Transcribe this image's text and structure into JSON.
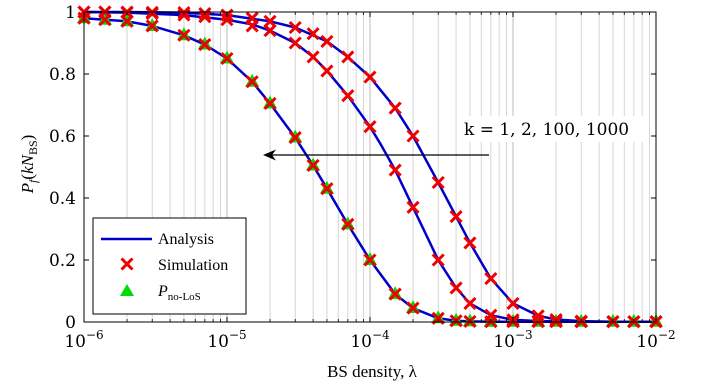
{
  "chart_data": {
    "type": "line",
    "xscale": "log",
    "xlim": [
      1e-06,
      0.01
    ],
    "ylim": [
      0,
      1
    ],
    "grid": "x-major-and-minor",
    "xlabel": "BS density, λ",
    "ylabel": "P_f(kN_BS)",
    "xtick_labels": [
      {
        "base": "10",
        "exp": "−6"
      },
      {
        "base": "10",
        "exp": "−5"
      },
      {
        "base": "10",
        "exp": "−4"
      },
      {
        "base": "10",
        "exp": "−3"
      },
      {
        "base": "10",
        "exp": "−2"
      }
    ],
    "ytick_labels": [
      "0",
      "0.2",
      "0.4",
      "0.6",
      "0.8",
      "1"
    ],
    "annotation": "k = 1, 2, 100, 1000",
    "legend": {
      "placement": "bottom-left",
      "entries": [
        {
          "label": "Analysis",
          "style": "line",
          "color": "#0000cc"
        },
        {
          "label": "Simulation",
          "style": "x-marker",
          "color": "#ee0000"
        },
        {
          "label_main": "P",
          "label_sub": "no-LoS",
          "style": "triangle-marker",
          "color": "#00dd00"
        }
      ]
    },
    "series": [
      {
        "name": "Analysis",
        "role": "k=1",
        "style": "line",
        "color": "#0000cc",
        "x": [
          1e-06,
          1.4e-06,
          2e-06,
          3e-06,
          5e-06,
          7e-06,
          1e-05,
          1.5e-05,
          2e-05,
          3e-05,
          4e-05,
          5e-05,
          7e-05,
          0.0001,
          0.00015,
          0.0002,
          0.0003,
          0.0004,
          0.0005,
          0.0007,
          0.001,
          0.0015,
          0.002,
          0.003,
          0.005,
          0.01
        ],
        "y": [
          0.98,
          0.975,
          0.97,
          0.955,
          0.925,
          0.895,
          0.85,
          0.775,
          0.705,
          0.595,
          0.505,
          0.43,
          0.315,
          0.2,
          0.09,
          0.045,
          0.012,
          0.004,
          0.002,
          0.001,
          0.001,
          0.001,
          0.001,
          0.001,
          0.001,
          0.001
        ]
      },
      {
        "name": "Analysis",
        "role": "k=100",
        "style": "line",
        "color": "#0000cc",
        "x": [
          1e-06,
          2e-06,
          5e-06,
          1e-05,
          1.5e-05,
          2e-05,
          3e-05,
          4e-05,
          5e-05,
          7e-05,
          0.0001,
          0.00012,
          0.00015,
          0.0002,
          0.0003,
          0.0004,
          0.0005,
          0.0007,
          0.001,
          0.0015,
          0.002,
          0.003,
          0.005,
          0.01
        ],
        "y": [
          1.0,
          0.998,
          0.99,
          0.975,
          0.96,
          0.94,
          0.9,
          0.855,
          0.81,
          0.73,
          0.63,
          0.57,
          0.49,
          0.37,
          0.2,
          0.11,
          0.06,
          0.022,
          0.007,
          0.003,
          0.002,
          0.001,
          0.001,
          0.001
        ]
      },
      {
        "name": "Analysis",
        "role": "k=1000",
        "style": "line",
        "color": "#0000cc",
        "x": [
          1e-06,
          2e-06,
          5e-06,
          1e-05,
          2e-05,
          3e-05,
          5e-05,
          7e-05,
          0.0001,
          0.00015,
          0.0002,
          0.0003,
          0.0004,
          0.0005,
          0.0007,
          0.001,
          0.0015,
          0.002,
          0.003,
          0.005,
          0.01
        ],
        "y": [
          1.0,
          1.0,
          0.998,
          0.99,
          0.97,
          0.95,
          0.905,
          0.855,
          0.79,
          0.69,
          0.6,
          0.45,
          0.34,
          0.255,
          0.14,
          0.06,
          0.02,
          0.008,
          0.003,
          0.001,
          0.001
        ]
      },
      {
        "name": "Simulation",
        "role": "k=1",
        "style": "x-marker",
        "color": "#ee0000",
        "x": [
          1e-06,
          1.4e-06,
          2e-06,
          3e-06,
          5e-06,
          7e-06,
          1e-05,
          1.5e-05,
          2e-05,
          3e-05,
          4e-05,
          5e-05,
          7e-05,
          0.0001,
          0.00015,
          0.0002,
          0.0003,
          0.0004,
          0.0005,
          0.0007,
          0.001,
          0.0015,
          0.002,
          0.003,
          0.005,
          0.01
        ],
        "y": [
          0.98,
          0.975,
          0.97,
          0.955,
          0.925,
          0.895,
          0.85,
          0.775,
          0.705,
          0.595,
          0.505,
          0.43,
          0.315,
          0.2,
          0.09,
          0.045,
          0.012,
          0.004,
          0.002,
          0.001,
          0.001,
          0.001,
          0.001,
          0.001,
          0.001,
          0.001
        ]
      },
      {
        "name": "Simulation",
        "role": "k=100",
        "style": "x-marker",
        "color": "#ee0000",
        "x": [
          1e-06,
          1.4e-06,
          2e-06,
          3e-06,
          5e-06,
          7e-06,
          1e-05,
          1.5e-05,
          2e-05,
          3e-05,
          4e-05,
          5e-05,
          7e-05,
          0.0001,
          0.00015,
          0.0002,
          0.0003,
          0.0004,
          0.0005,
          0.0007,
          0.001,
          0.0015,
          0.002,
          0.003,
          0.005,
          0.007,
          0.01
        ],
        "y": [
          1.0,
          1.0,
          0.998,
          0.995,
          0.99,
          0.985,
          0.975,
          0.955,
          0.94,
          0.9,
          0.855,
          0.81,
          0.73,
          0.63,
          0.49,
          0.37,
          0.2,
          0.11,
          0.06,
          0.022,
          0.007,
          0.003,
          0.002,
          0.001,
          0.001,
          0.001,
          0.001
        ]
      },
      {
        "name": "Simulation",
        "role": "k=1000",
        "style": "x-marker",
        "color": "#ee0000",
        "x": [
          1e-06,
          1.4e-06,
          2e-06,
          3e-06,
          5e-06,
          7e-06,
          1e-05,
          1.5e-05,
          2e-05,
          3e-05,
          4e-05,
          5e-05,
          7e-05,
          0.0001,
          0.00015,
          0.0002,
          0.0003,
          0.0004,
          0.0005,
          0.0007,
          0.001,
          0.0015,
          0.002,
          0.003,
          0.005,
          0.007,
          0.01
        ],
        "y": [
          1.0,
          1.0,
          1.0,
          0.999,
          0.998,
          0.995,
          0.99,
          0.98,
          0.97,
          0.95,
          0.93,
          0.905,
          0.855,
          0.79,
          0.69,
          0.6,
          0.45,
          0.34,
          0.255,
          0.14,
          0.06,
          0.02,
          0.008,
          0.003,
          0.001,
          0.001,
          0.001
        ]
      },
      {
        "name": "P_no-LoS",
        "style": "triangle-marker",
        "color": "#00dd00",
        "x": [
          1e-06,
          1.4e-06,
          2e-06,
          3e-06,
          5e-06,
          7e-06,
          1e-05,
          1.5e-05,
          2e-05,
          3e-05,
          4e-05,
          5e-05,
          7e-05,
          0.0001,
          0.00015,
          0.0002,
          0.0003,
          0.0004,
          0.0005,
          0.0007,
          0.001,
          0.0015,
          0.002,
          0.003,
          0.005,
          0.007,
          0.01
        ],
        "y": [
          0.98,
          0.975,
          0.97,
          0.955,
          0.925,
          0.895,
          0.85,
          0.775,
          0.705,
          0.595,
          0.505,
          0.43,
          0.315,
          0.2,
          0.09,
          0.045,
          0.012,
          0.004,
          0.002,
          0.001,
          0.001,
          0.001,
          0.001,
          0.001,
          0.001,
          0.001,
          0.001
        ]
      }
    ]
  }
}
